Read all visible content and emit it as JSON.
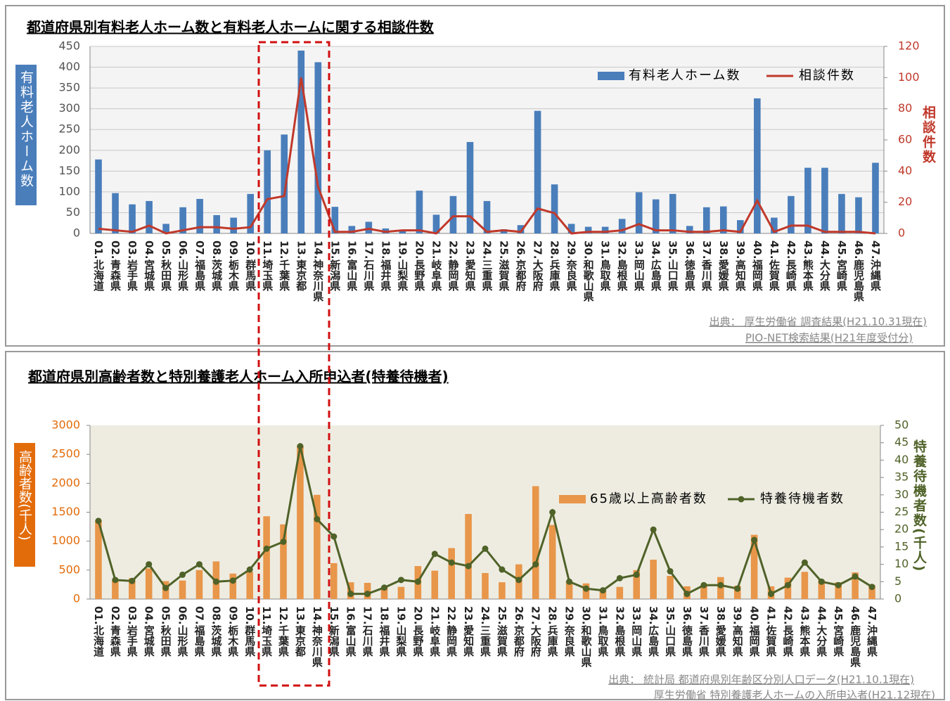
{
  "chart_data": [
    {
      "type": "bar_line",
      "title": "都道府県別有料老人ホーム数と有料老人ホームに関する相談件数",
      "ylabel": "有料老人ホーム数",
      "y2label": "相談件数",
      "source": [
        "出典： 厚生労働省 調査結果(H21.10.31現在)",
        "PIO-NET検索結果(H21年度受付分)"
      ],
      "categories": [
        "01.北海道",
        "02.青森県",
        "03.岩手県",
        "04.宮城県",
        "05.秋田県",
        "06.山形県",
        "07.福島県",
        "08.茨城県",
        "09.栃木県",
        "10.群馬県",
        "11.埼玉県",
        "12.千葉県",
        "13.東京都",
        "14.神奈川県",
        "15.新潟県",
        "16.富山県",
        "17.石川県",
        "18.福井県",
        "19.山梨県",
        "20.長野県",
        "21.岐阜県",
        "22.静岡県",
        "23.愛知県",
        "24.三重県",
        "25.滋賀県",
        "26.京都府",
        "27.大阪府",
        "28.兵庫県",
        "29.奈良県",
        "30.和歌山県",
        "31.鳥取県",
        "32.島根県",
        "33.岡山県",
        "34.広島県",
        "35.山口県",
        "36.徳島県",
        "37.香川県",
        "38.愛媛県",
        "39.高知県",
        "40.福岡県",
        "41.佐賀県",
        "42.長崎県",
        "43.熊本県",
        "44.大分県",
        "45.宮崎県",
        "46.鹿児島県",
        "47.沖縄県"
      ],
      "series": [
        {
          "name": "有料老人ホーム数",
          "color": "#4a7ebb",
          "values": [
            178,
            97,
            70,
            78,
            23,
            63,
            83,
            44,
            38,
            95,
            200,
            238,
            440,
            412,
            64,
            18,
            28,
            12,
            6,
            103,
            45,
            90,
            220,
            78,
            10,
            20,
            295,
            118,
            23,
            16,
            16,
            35,
            99,
            82,
            95,
            18,
            63,
            65,
            32,
            325,
            38,
            90,
            158,
            158,
            95,
            87,
            170
          ]
        },
        {
          "name": "相談件数",
          "color": "#c0392b",
          "axis": "y2",
          "values": [
            3,
            2,
            1,
            5,
            0,
            2,
            4,
            4,
            3,
            4,
            22,
            24,
            100,
            30,
            1,
            1,
            3,
            1,
            2,
            2,
            0,
            11,
            11,
            1,
            2,
            1,
            16,
            13,
            0,
            1,
            1,
            2,
            6,
            2,
            2,
            1,
            1,
            2,
            1,
            21,
            1,
            5,
            5,
            1,
            1,
            1,
            0
          ]
        }
      ],
      "ylim": [
        0,
        450
      ],
      "yticks": [
        0,
        50,
        100,
        150,
        200,
        250,
        300,
        350,
        400,
        450
      ],
      "y2lim": [
        0,
        120
      ],
      "y2ticks": [
        0,
        20,
        40,
        60,
        80,
        100,
        120
      ],
      "grid": true
    },
    {
      "type": "bar_line",
      "title": "都道府県別高齢者数と特別養護老人ホーム入所申込者(特養待機者)",
      "ylabel": "高齢者数(千人)",
      "y2label": "特養待機者数(千人)",
      "source": [
        "出典： 統計局 都道府県別年齢区分別人口データ(H21.10.1現在)",
        "厚生労働省 特別養護老人ホームの入所申込者(H21.12現在)"
      ],
      "categories": [
        "01.北海道",
        "02.青森県",
        "03.岩手県",
        "04.宮城県",
        "05.秋田県",
        "06.山形県",
        "07.福島県",
        "08.茨城県",
        "09.栃木県",
        "10.群馬県",
        "11.埼玉県",
        "12.千葉県",
        "13.東京都",
        "14.神奈川県",
        "15.新潟県",
        "16.富山県",
        "17.石川県",
        "18.福井県",
        "19.山梨県",
        "20.長野県",
        "21.岐阜県",
        "22.静岡県",
        "23.愛知県",
        "24.三重県",
        "25.滋賀県",
        "26.京都府",
        "27.大阪府",
        "28.兵庫県",
        "29.奈良県",
        "30.和歌山県",
        "31.鳥取県",
        "32.島根県",
        "33.岡山県",
        "34.広島県",
        "35.山口県",
        "36.徳島県",
        "37.香川県",
        "38.愛媛県",
        "39.高知県",
        "40.福岡県",
        "41.佐賀県",
        "42.長崎県",
        "43.熊本県",
        "44.大分県",
        "45.宮崎県",
        "46.鹿児島県",
        "47.沖縄県"
      ],
      "series": [
        {
          "name": "65歳以上高齢者数",
          "color": "#e8964a",
          "values": [
            1360,
            330,
            360,
            530,
            310,
            320,
            500,
            650,
            440,
            470,
            1430,
            1290,
            2650,
            1800,
            620,
            290,
            280,
            200,
            210,
            570,
            490,
            880,
            1470,
            450,
            290,
            600,
            1950,
            1280,
            310,
            270,
            160,
            210,
            500,
            680,
            400,
            220,
            240,
            380,
            230,
            1110,
            220,
            370,
            470,
            330,
            290,
            460,
            240
          ]
        },
        {
          "name": "特養待機者数",
          "color": "#4f6228",
          "axis": "y2",
          "markers": true,
          "values": [
            22.5,
            5.5,
            5.2,
            10,
            3.2,
            7,
            10,
            5,
            5.3,
            8.5,
            14.5,
            16.5,
            44,
            23,
            18,
            1.5,
            1.5,
            3.3,
            5.5,
            5,
            13,
            10.5,
            9.5,
            14.5,
            8.5,
            5.5,
            10,
            25,
            5,
            3,
            2.5,
            6,
            7,
            20,
            8,
            1.5,
            4,
            4,
            3,
            17,
            1.5,
            4,
            10.5,
            5,
            4,
            6.5,
            3.5
          ]
        }
      ],
      "ylim": [
        0,
        3000
      ],
      "yticks": [
        0,
        500,
        1000,
        1500,
        2000,
        2500,
        3000
      ],
      "y2lim": [
        0,
        50
      ],
      "y2ticks": [
        0,
        5,
        10,
        15,
        20,
        25,
        30,
        35,
        40,
        45,
        50
      ],
      "grid": false
    }
  ]
}
